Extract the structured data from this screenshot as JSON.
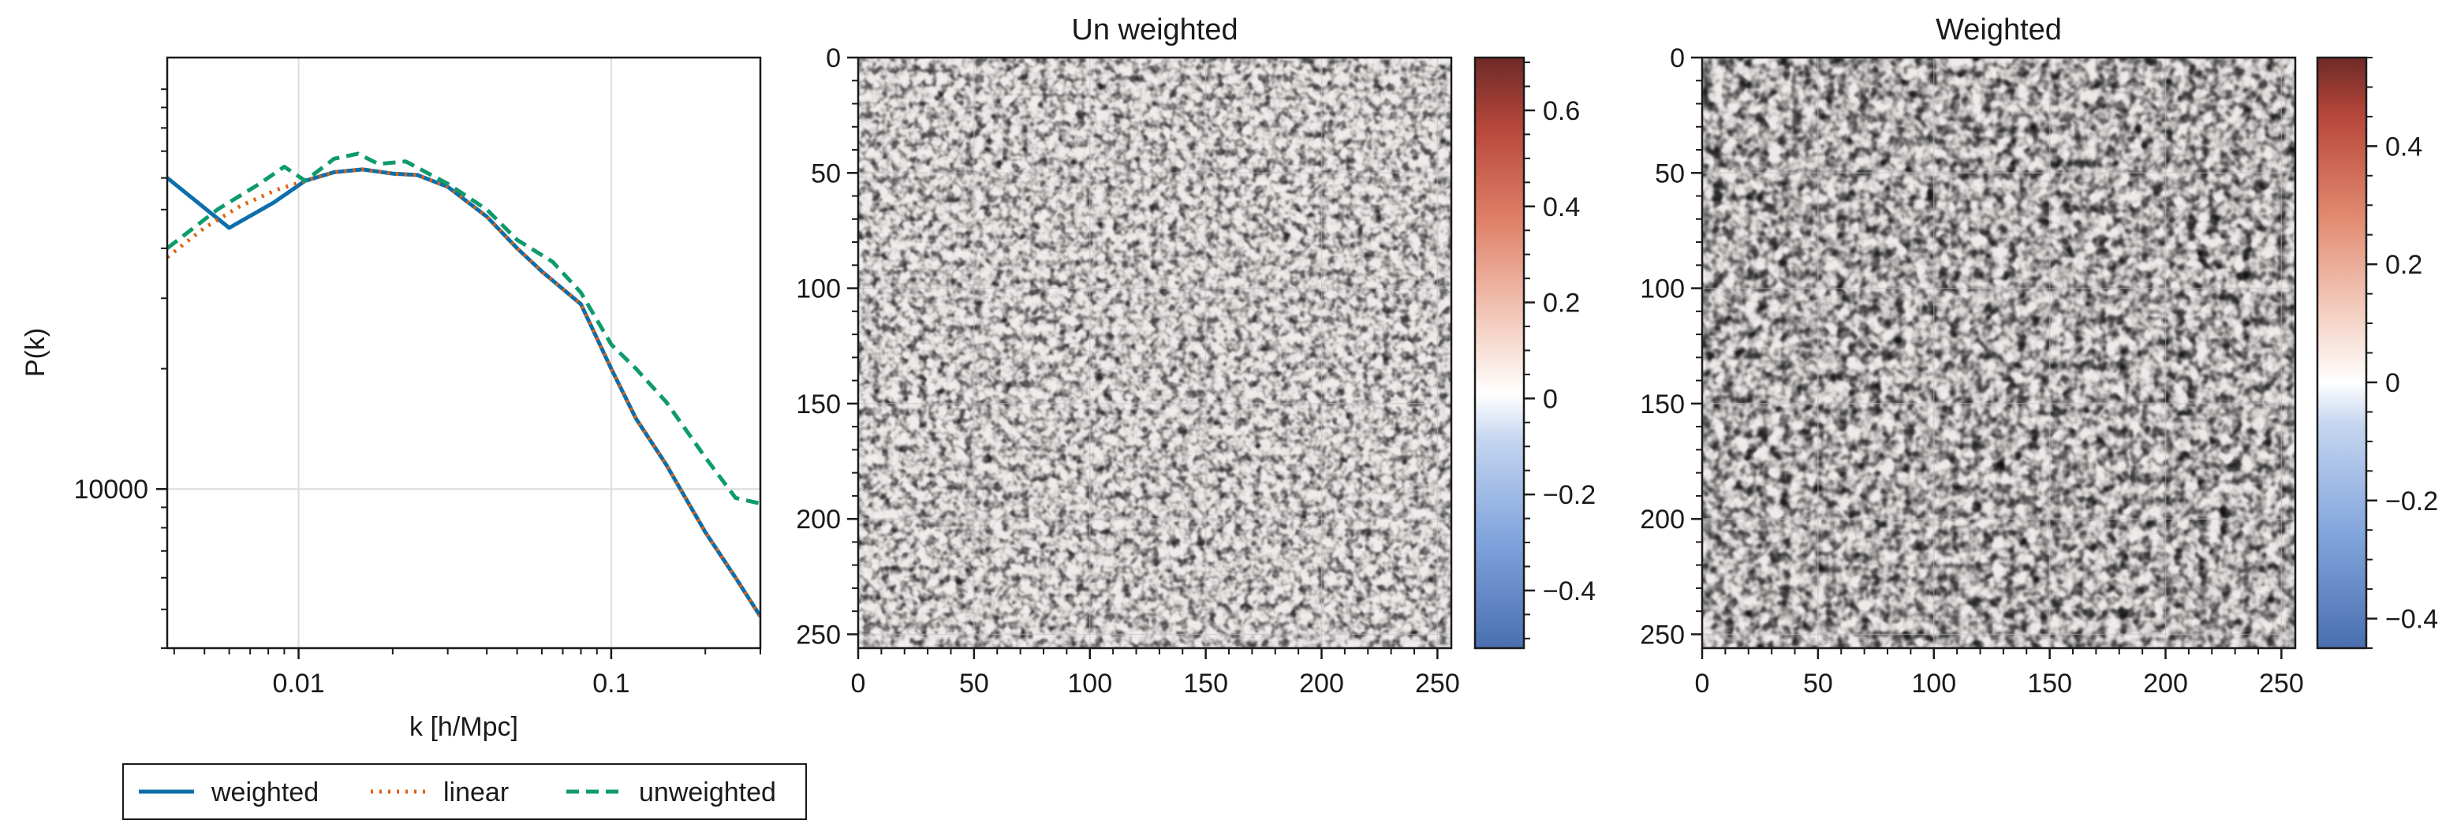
{
  "chart_data": [
    {
      "type": "line",
      "title": "",
      "xlabel": "k [h/Mpc]",
      "ylabel": "P(k)",
      "xscale": "log",
      "yscale": "log",
      "xlim": [
        0.0038,
        0.3
      ],
      "ylim": [
        4000,
        120000
      ],
      "xticks": [
        {
          "value": 0.01,
          "label": "0.01"
        },
        {
          "value": 0.1,
          "label": "0.1"
        }
      ],
      "yticks": [
        {
          "value": 10000,
          "label": "10000"
        }
      ],
      "grid": true,
      "legend": {
        "placement": "below",
        "entries": [
          "weighted",
          "linear",
          "unweighted"
        ]
      },
      "series": [
        {
          "name": "weighted",
          "color": "#0C6EAA",
          "dash": "solid",
          "points": [
            [
              0.0038,
              60000
            ],
            [
              0.006,
              45000
            ],
            [
              0.0083,
              52000
            ],
            [
              0.0105,
              59000
            ],
            [
              0.013,
              62000
            ],
            [
              0.016,
              63000
            ],
            [
              0.02,
              61500
            ],
            [
              0.024,
              61000
            ],
            [
              0.03,
              57000
            ],
            [
              0.04,
              48000
            ],
            [
              0.05,
              40000
            ],
            [
              0.06,
              35000
            ],
            [
              0.08,
              29000
            ],
            [
              0.1,
              20000
            ],
            [
              0.12,
              15000
            ],
            [
              0.15,
              11500
            ],
            [
              0.2,
              7800
            ],
            [
              0.25,
              6000
            ],
            [
              0.3,
              4800
            ]
          ]
        },
        {
          "name": "linear",
          "color": "#E0610F",
          "dash": "dotted",
          "points": [
            [
              0.0038,
              38000
            ],
            [
              0.005,
              45000
            ],
            [
              0.0065,
              51000
            ],
            [
              0.0085,
              56000
            ],
            [
              0.0105,
              59000
            ],
            [
              0.013,
              62000
            ],
            [
              0.016,
              63000
            ],
            [
              0.02,
              61500
            ],
            [
              0.024,
              61000
            ],
            [
              0.03,
              57000
            ],
            [
              0.04,
              48000
            ],
            [
              0.05,
              40000
            ],
            [
              0.06,
              35000
            ],
            [
              0.08,
              29000
            ],
            [
              0.1,
              20000
            ],
            [
              0.12,
              15000
            ],
            [
              0.15,
              11500
            ],
            [
              0.2,
              7800
            ],
            [
              0.25,
              6000
            ],
            [
              0.3,
              4800
            ]
          ]
        },
        {
          "name": "unweighted",
          "color": "#0E9A6E",
          "dash": "dashed",
          "points": [
            [
              0.0038,
              40000
            ],
            [
              0.0055,
              50000
            ],
            [
              0.0075,
              58000
            ],
            [
              0.009,
              64000
            ],
            [
              0.0105,
              59000
            ],
            [
              0.013,
              67000
            ],
            [
              0.0155,
              69000
            ],
            [
              0.018,
              65000
            ],
            [
              0.022,
              66000
            ],
            [
              0.03,
              58000
            ],
            [
              0.04,
              50000
            ],
            [
              0.05,
              42000
            ],
            [
              0.065,
              37000
            ],
            [
              0.08,
              31000
            ],
            [
              0.1,
              23000
            ],
            [
              0.12,
              20000
            ],
            [
              0.15,
              16500
            ],
            [
              0.2,
              12000
            ],
            [
              0.25,
              9500
            ],
            [
              0.3,
              9200
            ]
          ]
        }
      ]
    },
    {
      "type": "heatmap",
      "title": "Un weighted",
      "xlim": [
        0,
        256
      ],
      "ylim": [
        256,
        0
      ],
      "xticks": [
        0,
        50,
        100,
        150,
        200,
        250
      ],
      "yticks": [
        0,
        50,
        100,
        150,
        200,
        250
      ],
      "grid": true,
      "colormap": "coolwarm",
      "vmin": -0.52,
      "vmax": 0.71,
      "colorbar_ticks": [
        {
          "value": 0.6,
          "label": "0.6"
        },
        {
          "value": 0.4,
          "label": "0.4"
        },
        {
          "value": 0.2,
          "label": "0.2"
        },
        {
          "value": 0,
          "label": "0"
        },
        {
          "value": -0.2,
          "label": "−0.2"
        },
        {
          "value": -0.4,
          "label": "−0.4"
        }
      ]
    },
    {
      "type": "heatmap",
      "title": "Weighted",
      "xlim": [
        0,
        256
      ],
      "ylim": [
        256,
        0
      ],
      "xticks": [
        0,
        50,
        100,
        150,
        200,
        250
      ],
      "yticks": [
        0,
        50,
        100,
        150,
        200,
        250
      ],
      "grid": true,
      "colormap": "coolwarm",
      "vmin": -0.45,
      "vmax": 0.55,
      "colorbar_ticks": [
        {
          "value": 0.4,
          "label": "0.4"
        },
        {
          "value": 0.2,
          "label": "0.2"
        },
        {
          "value": 0,
          "label": "0"
        },
        {
          "value": -0.2,
          "label": "−0.2"
        },
        {
          "value": -0.4,
          "label": "−0.4"
        }
      ]
    }
  ]
}
